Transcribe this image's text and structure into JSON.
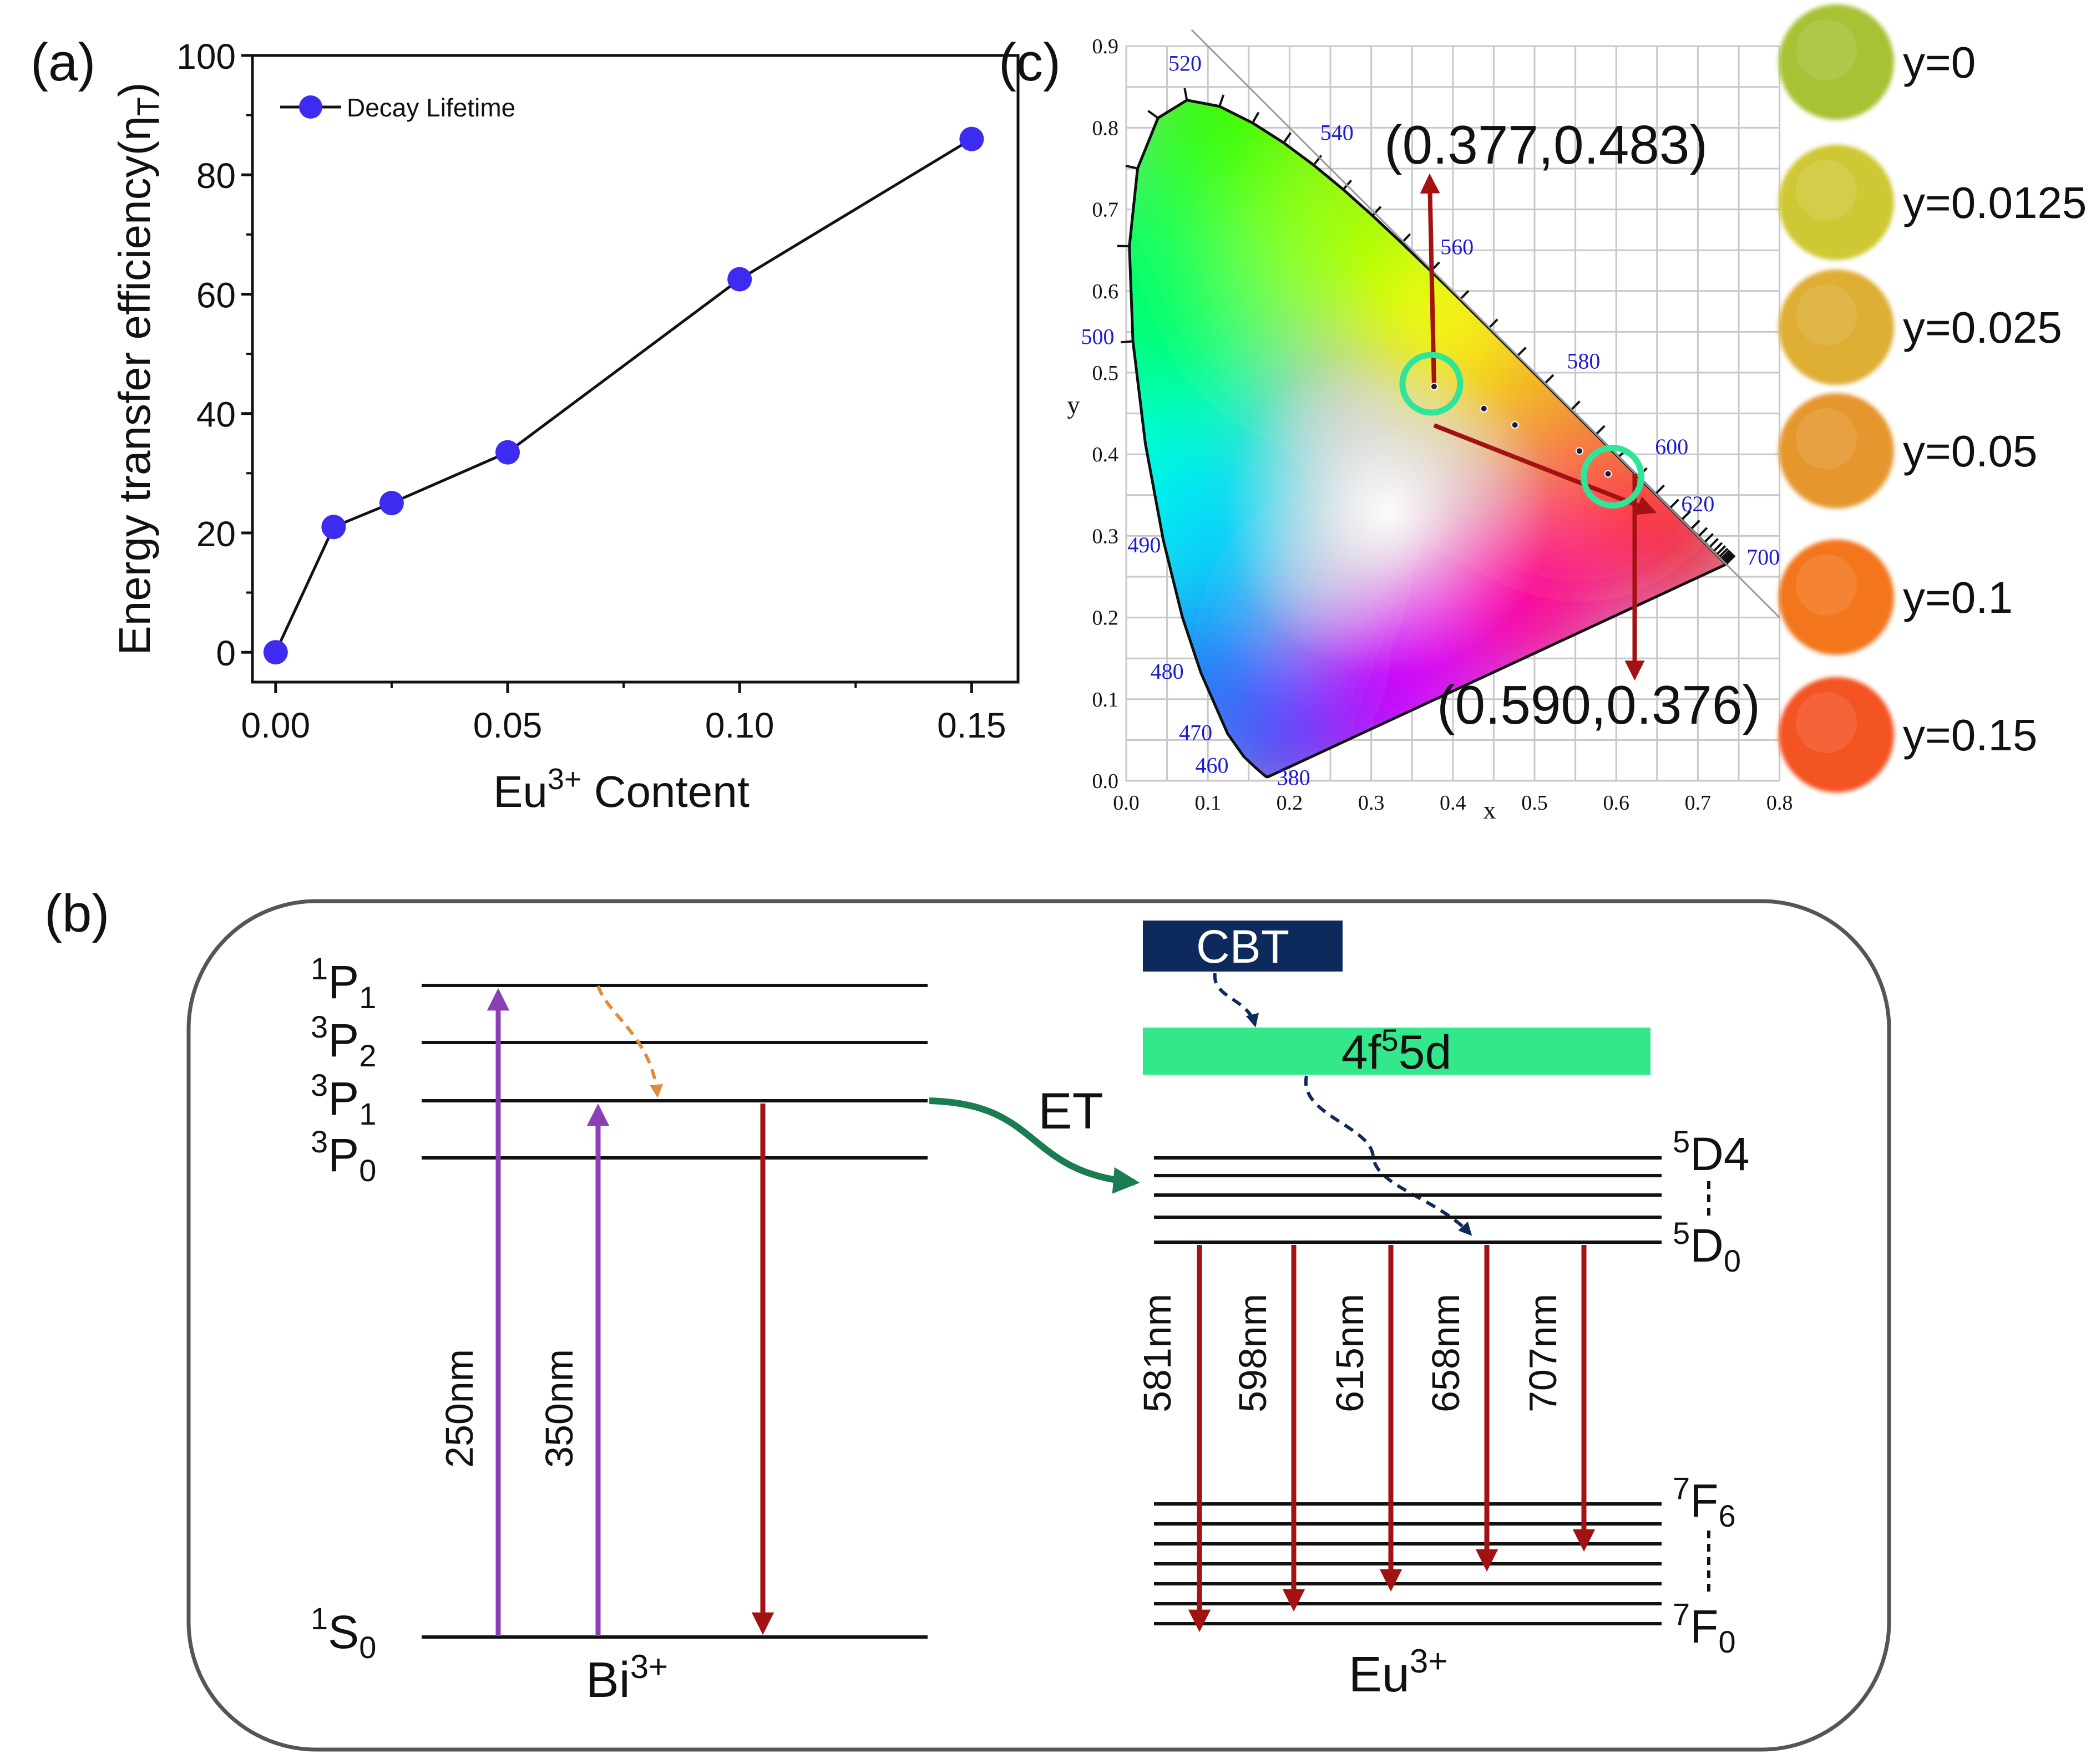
{
  "panel_labels": {
    "a": "(a)",
    "b": "(b)",
    "c": "(c)"
  },
  "colors": {
    "marker": "#3d2cf0",
    "emission": "#a31212",
    "excite": "#8a3fb5",
    "relax": "#e08a3a",
    "transfer": "#1b7c52",
    "cbt_box": "#0e2a5c",
    "band": "#33e88a",
    "circle": "#2ee59a",
    "path": "#a31212"
  },
  "chart_data": {
    "type": "line",
    "ylabel_main": "Energy transfer efficiency(η",
    "ylabel_sub": "T",
    "ylabel_end": ")",
    "xlabel_main": "Eu",
    "xlabel_sup": "3+",
    "xlabel_end": " Content",
    "legend": "Decay Lifetime",
    "x": [
      0,
      0.0125,
      0.025,
      0.05,
      0.1,
      0.15
    ],
    "y": [
      0,
      21,
      25,
      33.5,
      62.5,
      86
    ],
    "xlim": [
      -0.005,
      0.16
    ],
    "ylim": [
      -5,
      100
    ],
    "xticks": [
      0,
      0.05,
      0.1,
      0.15
    ],
    "xtick_labels": [
      "0.00",
      "0.05",
      "0.10",
      "0.15"
    ],
    "yticks": [
      0,
      20,
      40,
      60,
      80,
      100
    ],
    "ytick_labels": [
      "0",
      "20",
      "40",
      "60",
      "80",
      "100"
    ]
  },
  "cie": {
    "axis_x_label": "x",
    "axis_y_label": "y",
    "tick_labels": [
      "0.0",
      "0.1",
      "0.2",
      "0.3",
      "0.4",
      "0.5",
      "0.6",
      "0.7",
      "0.8",
      "0.9"
    ],
    "ticks": [
      0,
      0.1,
      0.2,
      0.3,
      0.4,
      0.5,
      0.6,
      0.7,
      0.8,
      0.9
    ],
    "x_tick_labels": [
      "0.0",
      "0.1",
      "0.2",
      "0.3",
      "0.4",
      "0.5",
      "0.6",
      "0.7",
      "0.8"
    ],
    "x_ticks": [
      0,
      0.1,
      0.2,
      0.3,
      0.4,
      0.5,
      0.6,
      0.7,
      0.8
    ],
    "wavelengths": [
      {
        "nm": 380,
        "label": "380"
      },
      {
        "nm": 460,
        "label": "460"
      },
      {
        "nm": 470,
        "label": "470"
      },
      {
        "nm": 480,
        "label": "480"
      },
      {
        "nm": 490,
        "label": "490"
      },
      {
        "nm": 500,
        "label": "500"
      },
      {
        "nm": 520,
        "label": "520"
      },
      {
        "nm": 540,
        "label": "540"
      },
      {
        "nm": 560,
        "label": "560"
      },
      {
        "nm": 580,
        "label": "580"
      },
      {
        "nm": 600,
        "label": "600"
      },
      {
        "nm": 620,
        "label": "620"
      },
      {
        "nm": 700,
        "label": "700"
      }
    ],
    "points": [
      [
        0.377,
        0.483
      ],
      [
        0.438,
        0.456
      ],
      [
        0.476,
        0.436
      ],
      [
        0.555,
        0.404
      ],
      [
        0.59,
        0.376
      ]
    ],
    "start_label": "(0.377,0.483)",
    "end_label": "(0.590,0.376)",
    "start": [
      0.377,
      0.483
    ],
    "end": [
      0.59,
      0.376
    ]
  },
  "samples": [
    {
      "label": "y=0",
      "color": "#a7c236"
    },
    {
      "label": "y=0.0125",
      "color": "#cfc835"
    },
    {
      "label": "y=0.025",
      "color": "#deae35"
    },
    {
      "label": "y=0.05",
      "color": "#e5972e"
    },
    {
      "label": "y=0.1",
      "color": "#f3761f"
    },
    {
      "label": "y=0.15",
      "color": "#f45220"
    }
  ],
  "diagram": {
    "bi": {
      "name": "Bi",
      "name_sup": "3+",
      "levels": [
        {
          "pre": "1",
          "main": "P",
          "sub": "1"
        },
        {
          "pre": "3",
          "main": "P",
          "sub": "2"
        },
        {
          "pre": "3",
          "main": "P",
          "sub": "1"
        },
        {
          "pre": "3",
          "main": "P",
          "sub": "0"
        },
        {
          "pre": "1",
          "main": "S",
          "sub": "0"
        }
      ],
      "excitations": [
        "250nm",
        "350nm"
      ]
    },
    "et_label": "ET",
    "cbt_label": "CBT",
    "band_label_main": "4f",
    "band_label_sup": "5",
    "band_label_end": "5d",
    "eu": {
      "name": "Eu",
      "name_sup": "3+",
      "d_top": {
        "pre": "5",
        "main": "D4"
      },
      "d_bottom": {
        "pre": "5",
        "main": "D",
        "sub": "0"
      },
      "f_top": {
        "pre": "7",
        "main": "F",
        "sub": "6"
      },
      "f_bottom": {
        "pre": "7",
        "main": "F",
        "sub": "0"
      },
      "emissions": [
        "581nm",
        "598nm",
        "615nm",
        "658nm",
        "707nm"
      ]
    }
  }
}
